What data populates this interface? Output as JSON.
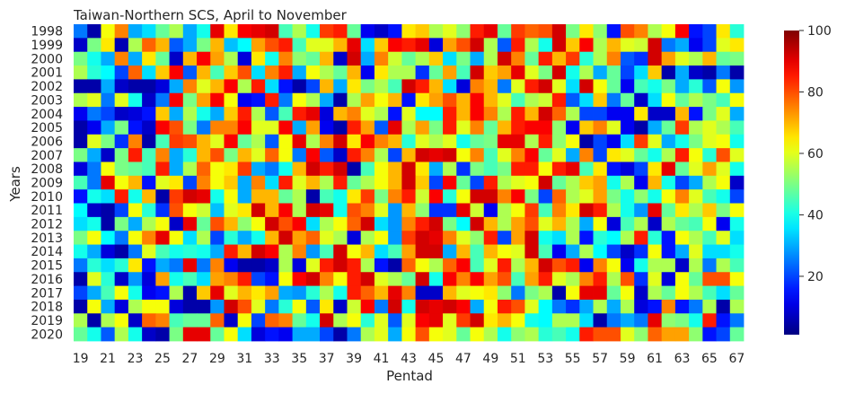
{
  "chart_data": {
    "type": "heatmap",
    "title": "Taiwan-Northern SCS, April to November",
    "xlabel": "Pentad",
    "ylabel": "Years",
    "years": [
      "1998",
      "1999",
      "2000",
      "2001",
      "2002",
      "2003",
      "2004",
      "2005",
      "2006",
      "2007",
      "2008",
      "2009",
      "2010",
      "2011",
      "2012",
      "2013",
      "2014",
      "2015",
      "2016",
      "2017",
      "2018",
      "2019",
      "2020"
    ],
    "x_tick_labels": [
      "19",
      "21",
      "23",
      "25",
      "27",
      "29",
      "31",
      "33",
      "35",
      "37",
      "39",
      "41",
      "43",
      "45",
      "47",
      "49",
      "51",
      "53",
      "55",
      "57",
      "59",
      "61",
      "63",
      "65",
      "67"
    ],
    "pentad_range": [
      19,
      67
    ],
    "colorbar": {
      "colormap": "jet",
      "vmin": 1,
      "vmax": 100,
      "ticks": [
        "20",
        "40",
        "60",
        "80",
        "100"
      ],
      "tick_values": [
        20,
        40,
        60,
        80,
        100
      ]
    },
    "values": [
      [
        25,
        5,
        62,
        75,
        30,
        35,
        48,
        55,
        30,
        40,
        90,
        65,
        88,
        90,
        92,
        45,
        55,
        40,
        82,
        85,
        48,
        12,
        8,
        15,
        65,
        68,
        55,
        60,
        52,
        85,
        90,
        48,
        82,
        78,
        80,
        92,
        50,
        65,
        52,
        15,
        80,
        75,
        55,
        62,
        88,
        15,
        20,
        65,
        42
      ],
      [
        8,
        50,
        65,
        6,
        55,
        78,
        70,
        22,
        30,
        50,
        70,
        32,
        38,
        72,
        80,
        85,
        45,
        60,
        60,
        70,
        90,
        35,
        68,
        88,
        85,
        90,
        10,
        72,
        80,
        92,
        55,
        22,
        85,
        55,
        40,
        92,
        68,
        88,
        55,
        70,
        60,
        58,
        92,
        25,
        30,
        12,
        20,
        60,
        65
      ],
      [
        50,
        40,
        30,
        75,
        30,
        65,
        48,
        8,
        70,
        88,
        72,
        55,
        10,
        65,
        40,
        75,
        52,
        48,
        70,
        8,
        92,
        30,
        75,
        58,
        48,
        55,
        68,
        35,
        50,
        30,
        55,
        92,
        75,
        48,
        85,
        70,
        82,
        42,
        55,
        75,
        22,
        18,
        92,
        72,
        60,
        55,
        70,
        48,
        50
      ],
      [
        55,
        42,
        38,
        20,
        78,
        35,
        68,
        88,
        22,
        70,
        45,
        68,
        80,
        35,
        75,
        85,
        30,
        62,
        55,
        48,
        70,
        12,
        65,
        55,
        55,
        18,
        48,
        72,
        45,
        92,
        68,
        72,
        90,
        60,
        50,
        92,
        40,
        55,
        30,
        48,
        20,
        35,
        68,
        5,
        30,
        8,
        5,
        25,
        5
      ],
      [
        5,
        5,
        30,
        8,
        5,
        5,
        10,
        30,
        75,
        60,
        70,
        88,
        55,
        85,
        35,
        15,
        5,
        20,
        70,
        30,
        65,
        50,
        55,
        45,
        92,
        85,
        70,
        35,
        10,
        75,
        70,
        25,
        60,
        85,
        92,
        60,
        35,
        92,
        62,
        48,
        12,
        45,
        40,
        50,
        30,
        42,
        22,
        62,
        28
      ],
      [
        55,
        60,
        25,
        60,
        40,
        8,
        25,
        88,
        50,
        72,
        88,
        62,
        12,
        15,
        85,
        25,
        62,
        55,
        30,
        5,
        55,
        72,
        62,
        70,
        15,
        65,
        72,
        80,
        70,
        88,
        70,
        60,
        45,
        55,
        58,
        85,
        22,
        35,
        68,
        25,
        48,
        8,
        35,
        62,
        48,
        55,
        50,
        45,
        62
      ],
      [
        12,
        25,
        20,
        8,
        10,
        15,
        68,
        30,
        55,
        40,
        30,
        68,
        85,
        55,
        22,
        45,
        85,
        90,
        10,
        70,
        75,
        60,
        55,
        15,
        60,
        38,
        38,
        85,
        70,
        88,
        75,
        55,
        85,
        70,
        92,
        78,
        55,
        20,
        20,
        12,
        12,
        65,
        8,
        8,
        70,
        15,
        50,
        60,
        30
      ],
      [
        5,
        12,
        30,
        50,
        15,
        8,
        88,
        80,
        50,
        25,
        75,
        75,
        88,
        60,
        60,
        88,
        30,
        72,
        12,
        5,
        85,
        72,
        22,
        90,
        55,
        72,
        50,
        85,
        60,
        75,
        48,
        70,
        85,
        88,
        88,
        52,
        12,
        68,
        75,
        60,
        12,
        5,
        30,
        48,
        82,
        55,
        60,
        55,
        45
      ],
      [
        5,
        60,
        50,
        18,
        75,
        5,
        45,
        82,
        80,
        70,
        60,
        88,
        48,
        55,
        22,
        62,
        90,
        55,
        75,
        92,
        65,
        88,
        75,
        70,
        42,
        60,
        55,
        60,
        40,
        48,
        50,
        90,
        90,
        55,
        85,
        52,
        62,
        5,
        20,
        12,
        35,
        82,
        60,
        30,
        40,
        50,
        60,
        62,
        40
      ],
      [
        50,
        30,
        8,
        50,
        85,
        45,
        75,
        30,
        42,
        70,
        80,
        50,
        70,
        60,
        78,
        62,
        25,
        88,
        22,
        8,
        85,
        75,
        55,
        20,
        70,
        92,
        90,
        92,
        62,
        75,
        45,
        60,
        75,
        88,
        48,
        60,
        30,
        75,
        20,
        65,
        60,
        48,
        40,
        55,
        85,
        62,
        42,
        80,
        60
      ],
      [
        10,
        25,
        62,
        50,
        48,
        45,
        85,
        30,
        55,
        78,
        62,
        65,
        82,
        30,
        25,
        40,
        70,
        92,
        85,
        92,
        5,
        45,
        62,
        70,
        92,
        65,
        30,
        55,
        18,
        50,
        45,
        50,
        85,
        85,
        62,
        85,
        90,
        45,
        65,
        15,
        10,
        20,
        65,
        90,
        48,
        60,
        72,
        60,
        40
      ],
      [
        45,
        25,
        90,
        62,
        70,
        15,
        60,
        65,
        20,
        75,
        62,
        68,
        30,
        75,
        35,
        85,
        60,
        70,
        55,
        85,
        48,
        55,
        62,
        70,
        92,
        68,
        20,
        88,
        48,
        20,
        85,
        55,
        60,
        62,
        92,
        48,
        55,
        68,
        72,
        40,
        55,
        12,
        70,
        40,
        20,
        30,
        55,
        62,
        8
      ],
      [
        15,
        40,
        35,
        85,
        40,
        70,
        5,
        82,
        92,
        90,
        40,
        62,
        30,
        70,
        70,
        48,
        55,
        5,
        45,
        40,
        65,
        82,
        50,
        75,
        85,
        58,
        88,
        42,
        62,
        92,
        92,
        75,
        88,
        50,
        20,
        78,
        55,
        60,
        72,
        50,
        40,
        52,
        40,
        62,
        75,
        60,
        45,
        40,
        20
      ],
      [
        38,
        8,
        5,
        20,
        62,
        42,
        18,
        80,
        62,
        58,
        32,
        60,
        65,
        92,
        70,
        88,
        55,
        92,
        90,
        40,
        80,
        75,
        60,
        28,
        70,
        52,
        18,
        18,
        90,
        58,
        12,
        55,
        62,
        82,
        45,
        75,
        65,
        92,
        85,
        55,
        40,
        28,
        90,
        48,
        65,
        55,
        68,
        50,
        62
      ],
      [
        35,
        40,
        5,
        50,
        30,
        55,
        62,
        8,
        90,
        48,
        80,
        70,
        52,
        62,
        92,
        80,
        88,
        35,
        55,
        62,
        78,
        92,
        35,
        28,
        75,
        85,
        92,
        50,
        38,
        92,
        70,
        55,
        72,
        80,
        60,
        70,
        55,
        30,
        62,
        10,
        45,
        55,
        8,
        55,
        48,
        45,
        62,
        12,
        40
      ],
      [
        50,
        62,
        38,
        25,
        62,
        75,
        90,
        62,
        35,
        55,
        20,
        42,
        30,
        40,
        70,
        92,
        72,
        78,
        60,
        55,
        10,
        55,
        62,
        28,
        82,
        92,
        90,
        75,
        60,
        52,
        85,
        20,
        72,
        92,
        40,
        35,
        55,
        15,
        42,
        38,
        55,
        85,
        42,
        15,
        62,
        55,
        45,
        60,
        35
      ],
      [
        40,
        30,
        10,
        5,
        25,
        60,
        45,
        40,
        42,
        40,
        30,
        85,
        70,
        92,
        88,
        55,
        75,
        28,
        45,
        92,
        62,
        70,
        35,
        45,
        72,
        92,
        92,
        30,
        70,
        45,
        70,
        62,
        60,
        92,
        45,
        12,
        30,
        55,
        38,
        20,
        8,
        18,
        62,
        15,
        30,
        60,
        35,
        35,
        40
      ],
      [
        25,
        42,
        35,
        42,
        65,
        15,
        30,
        25,
        90,
        25,
        75,
        12,
        5,
        5,
        8,
        55,
        10,
        60,
        85,
        92,
        85,
        55,
        15,
        5,
        78,
        62,
        55,
        78,
        88,
        45,
        60,
        85,
        55,
        70,
        92,
        80,
        85,
        12,
        75,
        62,
        12,
        40,
        55,
        55,
        8,
        55,
        25,
        55,
        45
      ],
      [
        5,
        60,
        42,
        8,
        28,
        10,
        72,
        40,
        45,
        35,
        72,
        75,
        85,
        20,
        15,
        62,
        88,
        92,
        75,
        62,
        85,
        92,
        60,
        55,
        48,
        92,
        40,
        88,
        75,
        88,
        72,
        80,
        45,
        72,
        85,
        60,
        55,
        75,
        85,
        55,
        80,
        18,
        60,
        10,
        62,
        48,
        80,
        80,
        62
      ],
      [
        20,
        30,
        45,
        62,
        40,
        12,
        15,
        55,
        5,
        68,
        90,
        60,
        70,
        65,
        72,
        30,
        28,
        42,
        55,
        40,
        85,
        78,
        70,
        90,
        75,
        8,
        8,
        70,
        60,
        62,
        65,
        52,
        25,
        50,
        55,
        5,
        62,
        90,
        90,
        48,
        62,
        8,
        55,
        48,
        62,
        55,
        45,
        35,
        48
      ],
      [
        5,
        62,
        30,
        10,
        55,
        62,
        62,
        10,
        5,
        5,
        28,
        92,
        80,
        60,
        25,
        42,
        62,
        22,
        65,
        8,
        58,
        88,
        25,
        92,
        40,
        92,
        90,
        92,
        88,
        30,
        62,
        85,
        80,
        60,
        38,
        25,
        18,
        30,
        55,
        30,
        55,
        10,
        15,
        75,
        15,
        25,
        55,
        5,
        55
      ],
      [
        55,
        5,
        55,
        62,
        8,
        78,
        75,
        45,
        48,
        48,
        78,
        8,
        62,
        20,
        78,
        75,
        48,
        40,
        92,
        55,
        62,
        42,
        60,
        22,
        60,
        88,
        90,
        60,
        82,
        92,
        65,
        70,
        62,
        40,
        38,
        55,
        55,
        35,
        5,
        25,
        30,
        25,
        90,
        52,
        50,
        40,
        85,
        15,
        25
      ],
      [
        48,
        40,
        22,
        55,
        40,
        8,
        5,
        50,
        90,
        90,
        48,
        62,
        35,
        10,
        15,
        12,
        30,
        30,
        20,
        5,
        25,
        55,
        60,
        30,
        62,
        80,
        62,
        60,
        48,
        62,
        55,
        40,
        52,
        55,
        42,
        45,
        40,
        85,
        80,
        80,
        60,
        52,
        78,
        72,
        72,
        52,
        15,
        20,
        48
      ]
    ]
  }
}
